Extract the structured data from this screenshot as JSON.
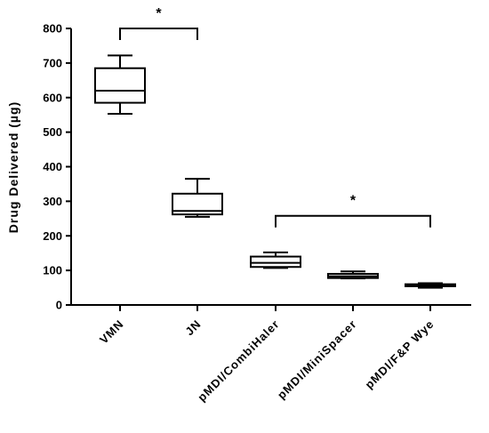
{
  "chart_data": {
    "type": "box",
    "ylabel": "Drug Delivered (µg)",
    "ylim": [
      0,
      800
    ],
    "yticks": [
      0,
      100,
      200,
      300,
      400,
      500,
      600,
      700,
      800
    ],
    "ytick_labels": [
      "0",
      "100",
      "200",
      "300",
      "400",
      "500",
      "600",
      "700",
      "800"
    ],
    "categories": [
      "VMN",
      "JN",
      "pMDI/CombiHaler",
      "pMDI/MiniSpacer",
      "pMDI/F&P Wye"
    ],
    "boxes": [
      {
        "category": "VMN",
        "min": 553,
        "q1": 585,
        "median": 620,
        "q3": 685,
        "max": 722
      },
      {
        "category": "JN",
        "min": 255,
        "q1": 262,
        "median": 272,
        "q3": 322,
        "max": 365
      },
      {
        "category": "pMDI/CombiHaler",
        "min": 107,
        "q1": 110,
        "median": 122,
        "q3": 140,
        "max": 152
      },
      {
        "category": "pMDI/MiniSpacer",
        "min": 77,
        "q1": 78,
        "median": 83,
        "q3": 90,
        "max": 97
      },
      {
        "category": "pMDI/F&P Wye",
        "min": 50,
        "q1": 54,
        "median": 57,
        "q3": 60,
        "max": 63
      }
    ],
    "significance": [
      {
        "from": 0,
        "to": 1,
        "y": 800,
        "label": "*"
      },
      {
        "from": 2,
        "to": 4,
        "y": 258,
        "label": "*"
      }
    ],
    "grid": false,
    "legend": "none"
  }
}
